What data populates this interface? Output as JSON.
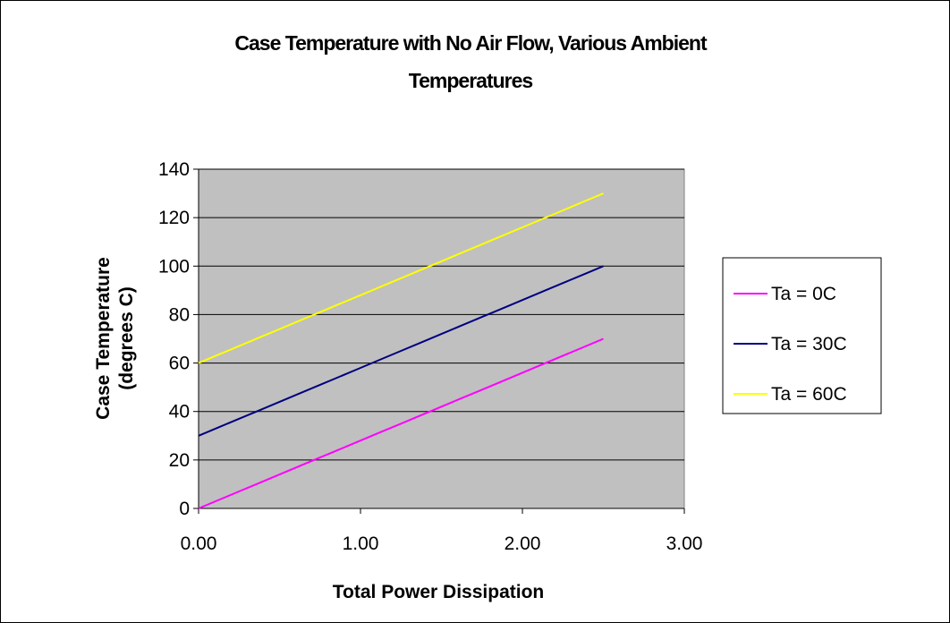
{
  "chart_data": {
    "type": "line",
    "title": "Case Temperature with No Air Flow, Various Ambient Temperatures",
    "title_lines": [
      "Case Temperature with No Air Flow, Various Ambient",
      "Temperatures"
    ],
    "xlabel": "Total Power Dissipation",
    "ylabel_lines": [
      "Case Temperature",
      "(degrees C)"
    ],
    "xlim": [
      0,
      3
    ],
    "ylim": [
      0,
      140
    ],
    "x_ticks": [
      "0.00",
      "1.00",
      "2.00",
      "3.00"
    ],
    "x_tick_values": [
      0,
      1,
      2,
      3
    ],
    "y_ticks": [
      "0",
      "20",
      "40",
      "60",
      "80",
      "100",
      "120",
      "140"
    ],
    "y_tick_values": [
      0,
      20,
      40,
      60,
      80,
      100,
      120,
      140
    ],
    "grid": "horizontal",
    "legend_position": "right",
    "plot_background": "#c0c0c0",
    "x": [
      0,
      0.125,
      0.25,
      0.375,
      0.5,
      0.625,
      0.75,
      0.875,
      1.0,
      1.125,
      1.25,
      1.375,
      1.5,
      1.625,
      1.75,
      1.875,
      2.0,
      2.125,
      2.25,
      2.375,
      2.5
    ],
    "series": [
      {
        "name": "Ta = 0C",
        "color": "#ff00ff",
        "values": [
          0,
          3.5,
          7,
          10.5,
          14,
          17.5,
          21,
          24.5,
          28,
          31.5,
          35,
          38.5,
          42,
          45.5,
          49,
          52.5,
          56,
          59.5,
          63,
          66.5,
          70
        ]
      },
      {
        "name": "Ta = 30C",
        "color": "#000080",
        "values": [
          30,
          33.5,
          37,
          40.5,
          44,
          47.5,
          51,
          54.5,
          58,
          61.5,
          65,
          68.5,
          72,
          75.5,
          79,
          82.5,
          86,
          89.5,
          93,
          96.5,
          100
        ]
      },
      {
        "name": "Ta = 60C",
        "color": "#ffff00",
        "values": [
          60,
          63.5,
          67,
          70.5,
          74,
          77.5,
          81,
          84.5,
          88,
          91.5,
          95,
          98.5,
          102,
          105.5,
          109,
          112.5,
          116,
          119.5,
          123,
          126.5,
          130
        ]
      }
    ]
  }
}
